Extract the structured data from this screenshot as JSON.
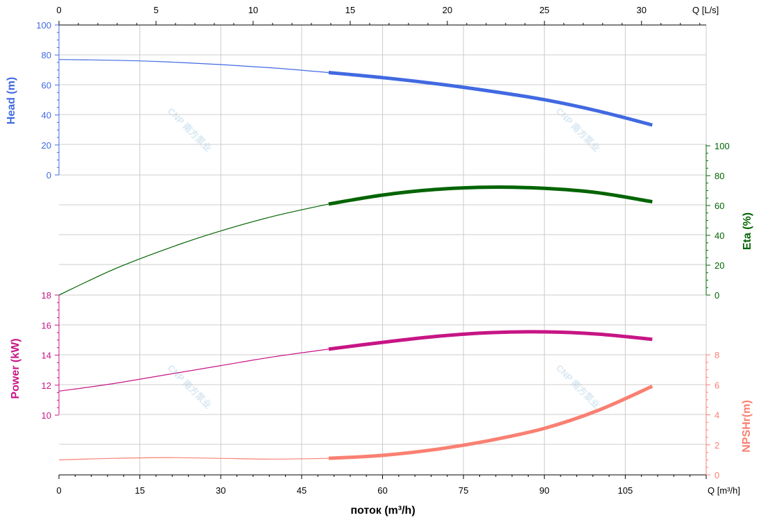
{
  "colors": {
    "head": "#4169e1",
    "eta": "#006400",
    "power": "#c71585",
    "npshr": "#fa8072",
    "grid": "#cccccc",
    "axis": "#000000",
    "watermark": "#b8d4e8"
  },
  "watermark": {
    "text": "CNP 南方泵业"
  },
  "chart_data": {
    "type": "line",
    "x_bottom": {
      "label": "поток (m³/h)",
      "unit_label": "Q [m³/h]",
      "range": [
        0,
        120
      ],
      "ticks": [
        0,
        15,
        30,
        45,
        60,
        75,
        90,
        105
      ]
    },
    "x_top": {
      "unit_label": "Q [L/s]",
      "range": [
        0,
        33.33
      ],
      "ticks": [
        0,
        5,
        10,
        15,
        20,
        25,
        30
      ]
    },
    "axes": {
      "head": {
        "label": "Head (m)",
        "range": [
          -40,
          100
        ],
        "ticks": [
          0,
          20,
          40,
          60,
          80,
          100
        ]
      },
      "eta": {
        "label": "Eta (%)",
        "range": [
          -120,
          0
        ],
        "ticks": [
          0,
          20,
          40,
          60,
          80,
          100
        ]
      },
      "power": {
        "label": "Power (kW)",
        "range": [
          6,
          18
        ],
        "ticks": [
          10,
          12,
          14,
          16,
          18
        ]
      },
      "npshr": {
        "label": "NPSHr(m)",
        "range": [
          0,
          12
        ],
        "ticks": [
          0,
          2,
          4,
          6,
          8
        ]
      }
    },
    "operating_range_start": 50,
    "series": [
      {
        "key": "head",
        "axis": "head",
        "x": [
          0,
          10,
          20,
          30,
          40,
          50,
          60,
          70,
          80,
          90,
          100,
          110
        ],
        "y": [
          77.0,
          76.5,
          75.4,
          73.6,
          71.3,
          68.3,
          64.9,
          60.8,
          55.9,
          50.2,
          42.6,
          33.3
        ]
      },
      {
        "key": "eta",
        "axis": "eta",
        "x": [
          0,
          10,
          20,
          30,
          40,
          50,
          60,
          70,
          80,
          90,
          100,
          110
        ],
        "y": [
          0,
          17,
          31,
          43,
          53,
          61,
          67,
          70.8,
          72.3,
          71.5,
          68.5,
          62.5
        ]
      },
      {
        "key": "power",
        "axis": "power",
        "x": [
          0,
          10,
          20,
          30,
          40,
          50,
          60,
          70,
          80,
          90,
          100,
          110
        ],
        "y": [
          11.6,
          12.1,
          12.7,
          13.3,
          13.9,
          14.4,
          14.85,
          15.25,
          15.5,
          15.55,
          15.4,
          15.05
        ]
      },
      {
        "key": "npshr",
        "axis": "npshr",
        "x": [
          0,
          10,
          20,
          30,
          40,
          50,
          60,
          70,
          80,
          90,
          100,
          110
        ],
        "y": [
          1.0,
          1.1,
          1.15,
          1.1,
          1.05,
          1.1,
          1.3,
          1.7,
          2.3,
          3.1,
          4.3,
          5.9
        ]
      }
    ]
  }
}
